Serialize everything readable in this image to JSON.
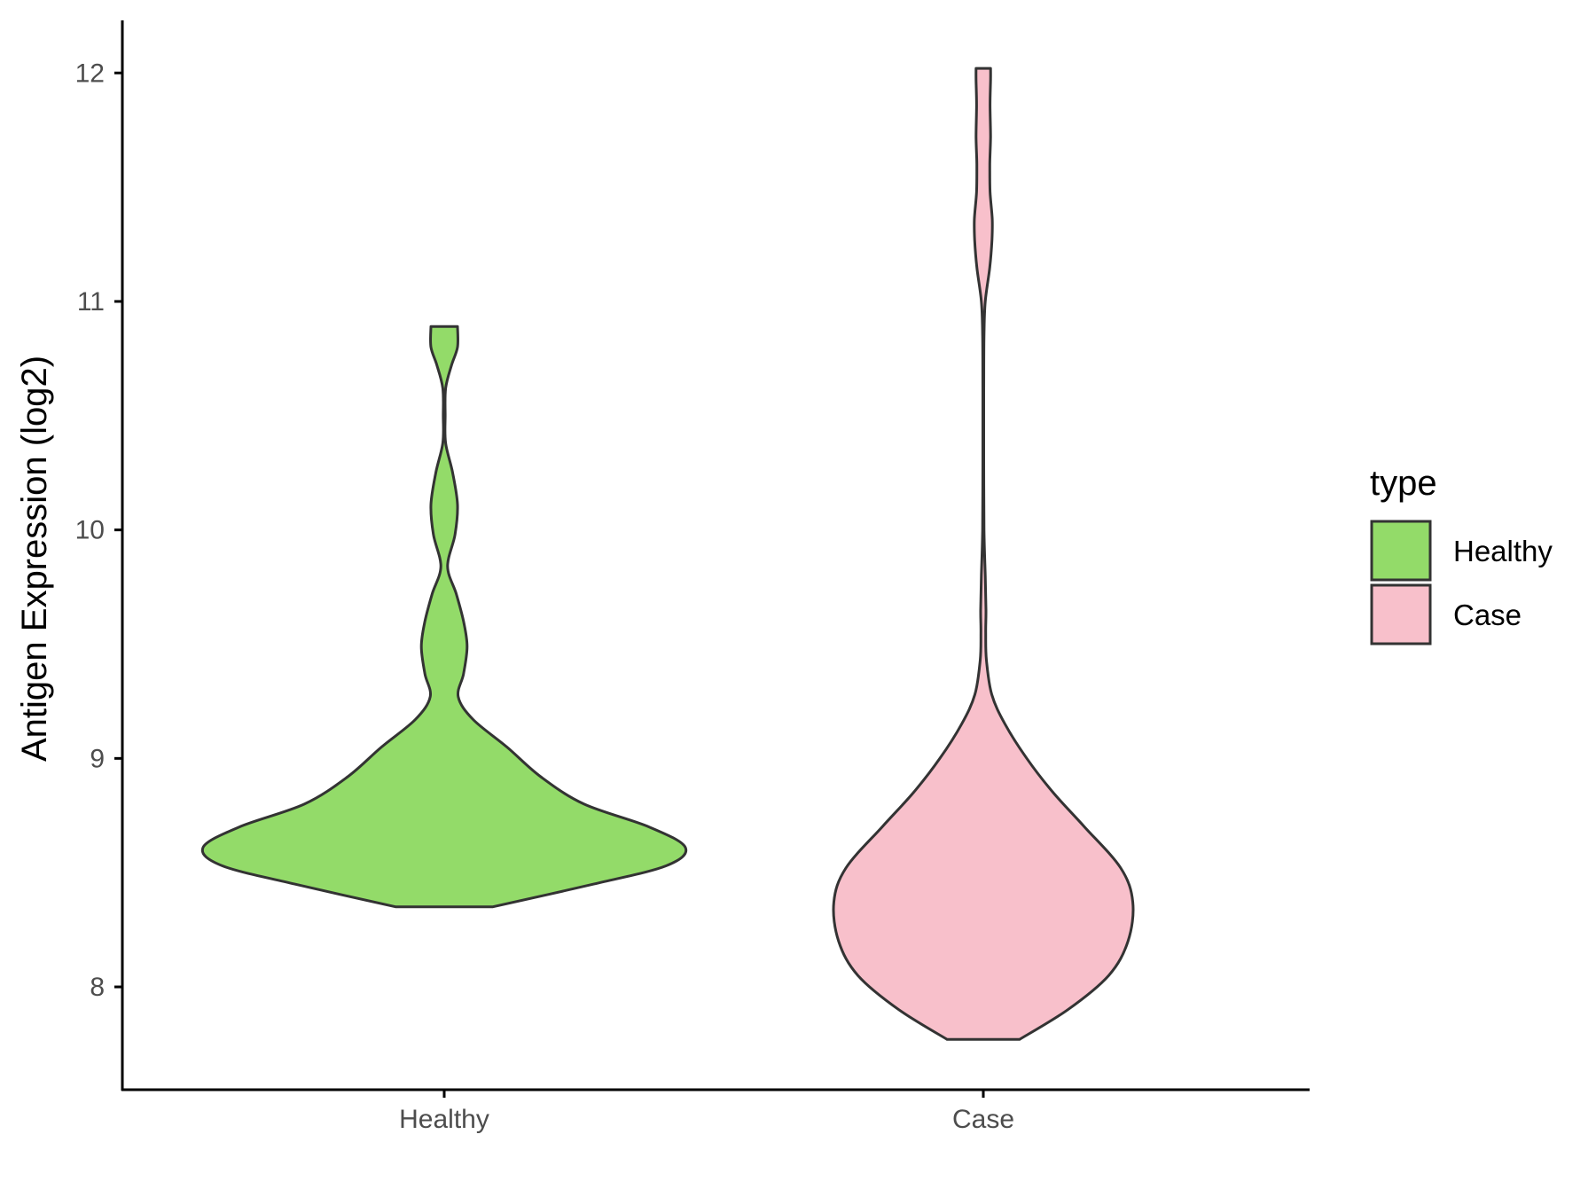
{
  "chart_data": {
    "type": "violin",
    "title": "",
    "xlabel": "",
    "ylabel": "Antigen Expression (log2)",
    "categories": [
      "Healthy",
      "Case"
    ],
    "ylim": [
      7.55,
      12.23
    ],
    "yticks": [
      8,
      9,
      10,
      11,
      12
    ],
    "grid": false,
    "legend": {
      "title": "type",
      "position": "right",
      "entries": [
        {
          "label": "Healthy",
          "color": "#93DB69"
        },
        {
          "label": "Case",
          "color": "#F8C0CB"
        }
      ]
    },
    "outline_color": "#333333",
    "series": [
      {
        "name": "Healthy",
        "color": "#93DB69",
        "min": 8.35,
        "max": 10.89,
        "density": [
          {
            "y": 8.35,
            "w": 0.2
          },
          {
            "y": 8.45,
            "w": 0.62
          },
          {
            "y": 8.53,
            "w": 0.92
          },
          {
            "y": 8.61,
            "w": 1.0
          },
          {
            "y": 8.7,
            "w": 0.85
          },
          {
            "y": 8.8,
            "w": 0.58
          },
          {
            "y": 8.92,
            "w": 0.4
          },
          {
            "y": 9.05,
            "w": 0.26
          },
          {
            "y": 9.17,
            "w": 0.12
          },
          {
            "y": 9.27,
            "w": 0.058
          },
          {
            "y": 9.37,
            "w": 0.08
          },
          {
            "y": 9.49,
            "w": 0.095
          },
          {
            "y": 9.6,
            "w": 0.08
          },
          {
            "y": 9.72,
            "w": 0.05
          },
          {
            "y": 9.84,
            "w": 0.014
          },
          {
            "y": 9.98,
            "w": 0.045
          },
          {
            "y": 10.11,
            "w": 0.055
          },
          {
            "y": 10.25,
            "w": 0.035
          },
          {
            "y": 10.38,
            "w": 0.006
          },
          {
            "y": 10.5,
            "w": 0.004
          },
          {
            "y": 10.62,
            "w": 0.006
          },
          {
            "y": 10.72,
            "w": 0.03
          },
          {
            "y": 10.8,
            "w": 0.055
          },
          {
            "y": 10.89,
            "w": 0.055
          }
        ]
      },
      {
        "name": "Case",
        "color": "#F8C0CB",
        "min": 7.77,
        "max": 12.02,
        "density": [
          {
            "y": 7.77,
            "w": 0.15
          },
          {
            "y": 7.9,
            "w": 0.35
          },
          {
            "y": 8.05,
            "w": 0.52
          },
          {
            "y": 8.2,
            "w": 0.6
          },
          {
            "y": 8.37,
            "w": 0.62
          },
          {
            "y": 8.52,
            "w": 0.57
          },
          {
            "y": 8.7,
            "w": 0.42
          },
          {
            "y": 8.85,
            "w": 0.29
          },
          {
            "y": 9.0,
            "w": 0.18
          },
          {
            "y": 9.15,
            "w": 0.09
          },
          {
            "y": 9.28,
            "w": 0.035
          },
          {
            "y": 9.43,
            "w": 0.013
          },
          {
            "y": 9.55,
            "w": 0.01
          },
          {
            "y": 9.65,
            "w": 0.011
          },
          {
            "y": 9.8,
            "w": 0.008
          },
          {
            "y": 10.0,
            "w": 0.003
          },
          {
            "y": 10.3,
            "w": 0.002
          },
          {
            "y": 10.6,
            "w": 0.002
          },
          {
            "y": 10.85,
            "w": 0.003
          },
          {
            "y": 11.0,
            "w": 0.008
          },
          {
            "y": 11.15,
            "w": 0.027
          },
          {
            "y": 11.27,
            "w": 0.036
          },
          {
            "y": 11.36,
            "w": 0.037
          },
          {
            "y": 11.48,
            "w": 0.028
          },
          {
            "y": 11.6,
            "w": 0.027
          },
          {
            "y": 11.72,
            "w": 0.03
          },
          {
            "y": 11.86,
            "w": 0.028
          },
          {
            "y": 11.97,
            "w": 0.03
          },
          {
            "y": 12.02,
            "w": 0.03
          }
        ]
      }
    ]
  }
}
